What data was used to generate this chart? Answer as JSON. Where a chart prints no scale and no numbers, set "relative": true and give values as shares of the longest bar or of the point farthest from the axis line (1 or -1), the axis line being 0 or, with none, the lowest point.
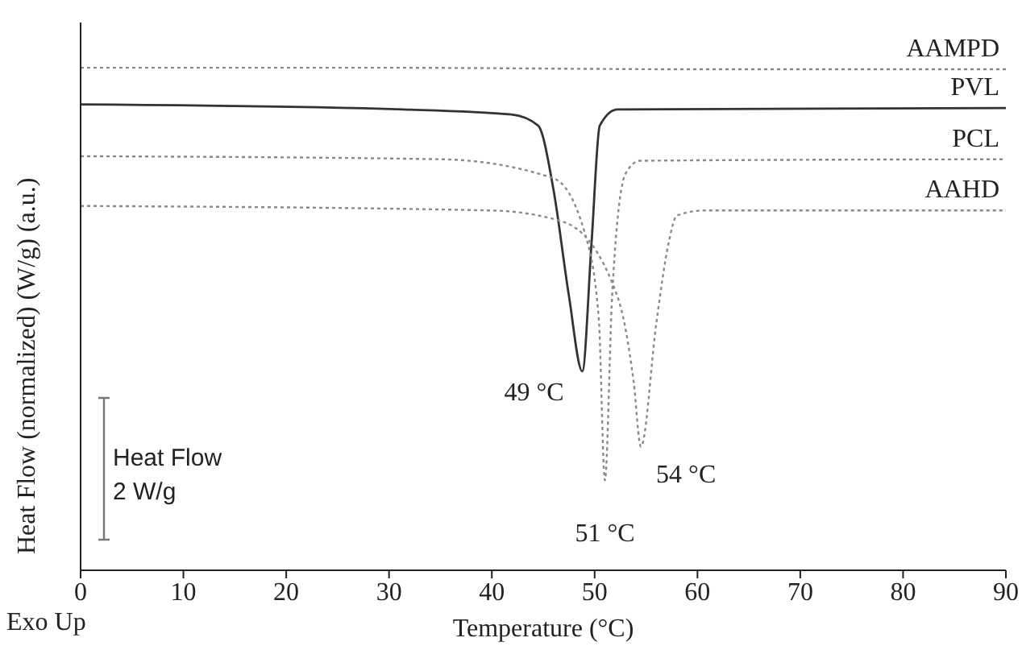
{
  "chart_data": {
    "type": "line",
    "relative": true,
    "xlabel": "Temperature (°C)",
    "ylabel": "Heat Flow (normalized) (W/g) (a.u.)",
    "xlim": [
      0,
      90
    ],
    "xticks": [
      0,
      10,
      20,
      30,
      40,
      50,
      60,
      70,
      80,
      90
    ],
    "grid": false,
    "legend": false,
    "marker": "none",
    "annotations": [
      "Exo Up",
      "Heat Flow 2 W/g",
      {
        "text": "49 °C",
        "x": 48.8,
        "y": 0.396
      },
      {
        "text": "51 °C",
        "x": 51,
        "y": 0.179
      },
      {
        "text": "54 °C",
        "x": 54.5,
        "y": 0.246
      }
    ],
    "series": [
      {
        "name": "AAMPD",
        "color": "#8a8a8a",
        "line_style": "dotted",
        "x": [
          0,
          30,
          60,
          90
        ],
        "values": [
          1.0,
          1.0,
          0.997,
          0.997
        ]
      },
      {
        "name": "PVL",
        "color": "#333333",
        "line_style": "solid",
        "x": [
          0,
          31.4,
          41.9,
          44.5,
          46,
          47.5,
          48.8,
          49.7,
          50.5,
          52.2,
          90
        ],
        "values": [
          0.927,
          0.917,
          0.907,
          0.885,
          0.757,
          0.546,
          0.396,
          0.652,
          0.885,
          0.917,
          0.92
        ]
      },
      {
        "name": "PCL",
        "color": "#8a8a8a",
        "line_style": "dotted",
        "x": [
          0,
          35,
          46,
          49,
          50.4,
          51,
          51.7,
          53,
          54.4,
          90
        ],
        "values": [
          0.824,
          0.818,
          0.78,
          0.674,
          0.502,
          0.179,
          0.546,
          0.789,
          0.815,
          0.818
        ]
      },
      {
        "name": "AAHD",
        "color": "#8a8a8a",
        "line_style": "dotted",
        "x": [
          0,
          40,
          47,
          52.2,
          53.8,
          54.5,
          56,
          57.2,
          58,
          60.7,
          90
        ],
        "values": [
          0.725,
          0.716,
          0.693,
          0.546,
          0.374,
          0.246,
          0.492,
          0.652,
          0.706,
          0.716,
          0.716
        ]
      }
    ]
  }
}
